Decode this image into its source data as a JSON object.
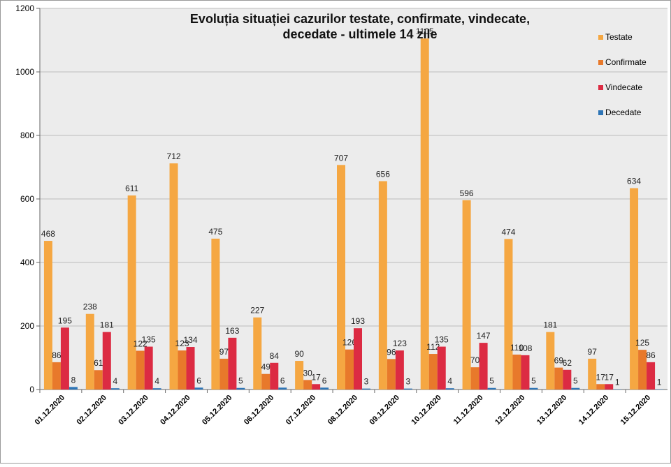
{
  "chart_data": {
    "type": "bar",
    "title": [
      "Evoluția situației cazurilor testate, confirmate, vindecate,",
      "decedate -  ultimele 14 zile"
    ],
    "categories": [
      "01.12.2020",
      "02.12.2020",
      "03.12.2020",
      "04.12.2020",
      "05.12.2020",
      "06.12.2020",
      "07.12.2020",
      "08.12.2020",
      "09.12.2020",
      "10.12.2020",
      "11.12.2020",
      "12.12.2020",
      "13.12.2020",
      "14.12.2020",
      "15.12.2020"
    ],
    "series": [
      {
        "name": "Testate",
        "color": "#f5a742",
        "values": [
          468,
          238,
          611,
          712,
          475,
          227,
          90,
          707,
          656,
          1105,
          596,
          474,
          181,
          97,
          634
        ]
      },
      {
        "name": "Confirmate",
        "color": "#e8792b",
        "values": [
          86,
          61,
          122,
          123,
          97,
          49,
          30,
          126,
          96,
          112,
          70,
          110,
          69,
          17,
          125
        ]
      },
      {
        "name": "Vindecate",
        "color": "#dc2b43",
        "values": [
          195,
          181,
          135,
          134,
          163,
          84,
          17,
          193,
          123,
          135,
          147,
          108,
          62,
          17,
          86
        ]
      },
      {
        "name": "Decedate",
        "color": "#2e75b6",
        "values": [
          8,
          4,
          4,
          6,
          5,
          6,
          6,
          3,
          3,
          4,
          5,
          5,
          5,
          1,
          1
        ]
      }
    ],
    "ylim": [
      0,
      1200
    ],
    "yticks": [
      0,
      200,
      400,
      600,
      800,
      1000,
      1200
    ],
    "grid": true,
    "legend": "top-right"
  }
}
